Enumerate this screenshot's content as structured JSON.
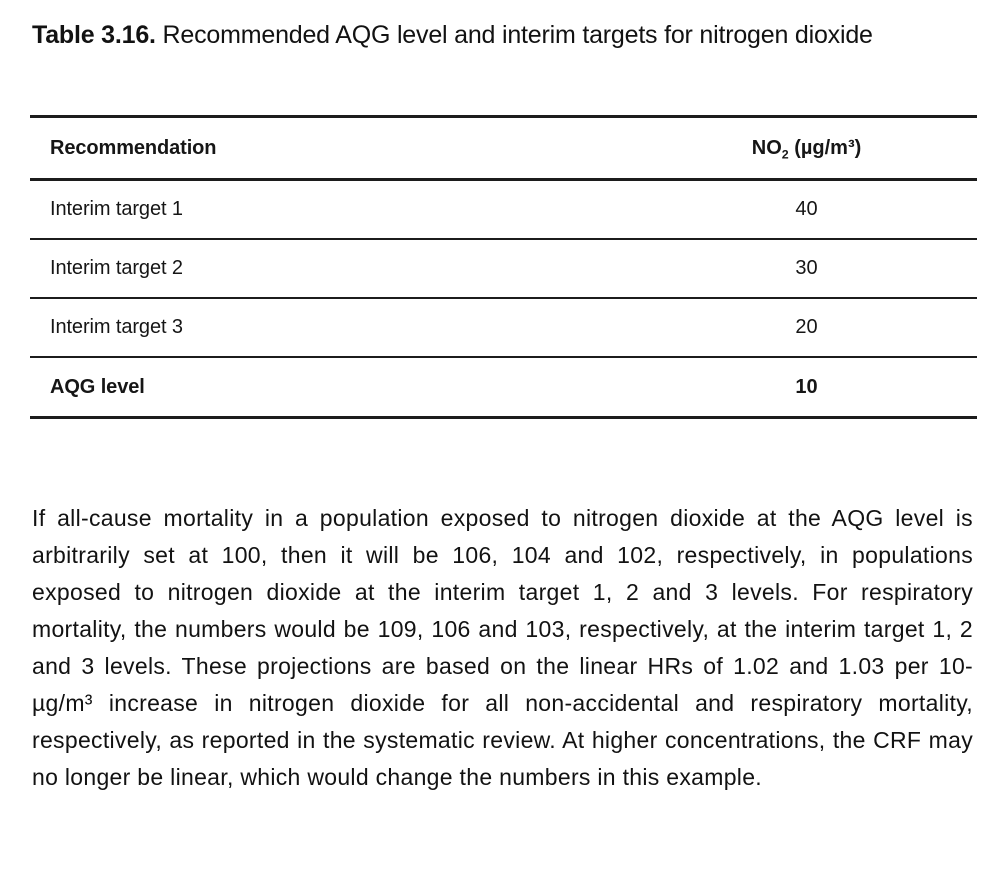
{
  "caption": {
    "number": "Table 3.16.",
    "text": "Recommended AQG level and interim targets for nitrogen dioxide"
  },
  "table": {
    "header": {
      "recommendation": "Recommendation",
      "no2_prefix": "NO",
      "no2_sub": "2",
      "no2_unit": " (µg/m³)"
    },
    "rows": [
      {
        "label": "Interim target 1",
        "value": "40"
      },
      {
        "label": "Interim target 2",
        "value": "30"
      },
      {
        "label": "Interim target 3",
        "value": "20"
      },
      {
        "label": "AQG level",
        "value": "10"
      }
    ]
  },
  "paragraph": "If all-cause mortality in a population exposed to nitrogen dioxide at the AQG level is arbitrarily set at 100, then it will be 106, 104 and 102, respectively, in populations exposed to nitrogen dioxide at the interim target 1, 2 and 3 levels. For respiratory mortality, the numbers would be 109, 106 and 103, respectively, at the interim target 1, 2 and 3 levels. These projections are based on the linear HRs of 1.02 and 1.03 per 10-µg/m³ increase in nitrogen dioxide for all non-accidental and respiratory mortality, respectively, as reported in the systematic review. At higher concentrations, the CRF may no longer be linear, which would change the numbers in this example.",
  "colors": {
    "text": "#161616",
    "rule": "#1c1c1c",
    "background": "#ffffff"
  }
}
